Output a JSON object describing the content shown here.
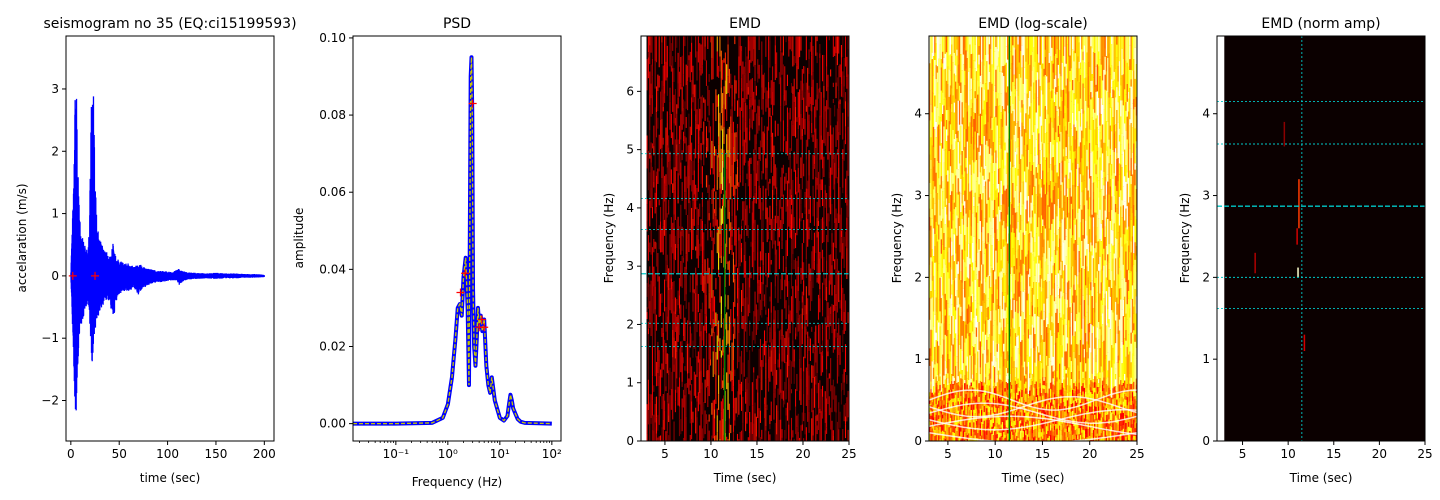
{
  "chart_data": [
    {
      "type": "line",
      "title": "seismogram no 35 (EQ:ci15199593)",
      "xlabel": "time (sec)",
      "ylabel": "accelaration (m/s)",
      "xlim": [
        -5,
        210
      ],
      "ylim": [
        -2.65,
        3.85
      ],
      "xticks": [
        0,
        50,
        100,
        150,
        200
      ],
      "xtick_labels": [
        "0",
        "50",
        "100",
        "150",
        "200"
      ],
      "yticks": [
        -2,
        -1,
        0,
        1,
        2,
        3
      ],
      "ytick_labels": [
        "−2",
        "−1",
        "0",
        "1",
        "2",
        "3"
      ],
      "series": [
        {
          "color": "#0000ff",
          "envelope": [
            [
              0,
              0,
              0
            ],
            [
              1,
              -0.5,
              0.6
            ],
            [
              2,
              -0.9,
              1.1
            ],
            [
              3,
              -1.4,
              1.6
            ],
            [
              4,
              -2.0,
              2.5
            ],
            [
              5,
              -2.35,
              3.4
            ],
            [
              6,
              -2.0,
              2.9
            ],
            [
              7,
              -1.6,
              2.0
            ],
            [
              8,
              -1.3,
              1.4
            ],
            [
              9,
              -1.0,
              1.0
            ],
            [
              10,
              -0.8,
              0.8
            ],
            [
              11,
              -0.8,
              0.75
            ],
            [
              12,
              -0.7,
              0.65
            ],
            [
              13,
              -0.7,
              0.6
            ],
            [
              14,
              -0.6,
              0.5
            ],
            [
              15,
              -0.55,
              0.5
            ],
            [
              16,
              -0.5,
              0.45
            ],
            [
              17,
              -0.45,
              0.4
            ],
            [
              18,
              -0.5,
              0.45
            ],
            [
              19,
              -0.7,
              0.8
            ],
            [
              20,
              -0.9,
              1.6
            ],
            [
              21,
              -1.2,
              2.6
            ],
            [
              22,
              -1.5,
              3.3
            ],
            [
              23,
              -1.2,
              3.65
            ],
            [
              24,
              -1.0,
              2.4
            ],
            [
              25,
              -0.9,
              1.6
            ],
            [
              26,
              -0.8,
              1.2
            ],
            [
              27,
              -0.7,
              1.0
            ],
            [
              28,
              -0.7,
              0.8
            ],
            [
              29,
              -0.6,
              0.7
            ],
            [
              30,
              -0.6,
              0.6
            ],
            [
              32,
              -0.5,
              0.5
            ],
            [
              34,
              -0.45,
              0.45
            ],
            [
              36,
              -0.4,
              0.4
            ],
            [
              38,
              -0.4,
              0.4
            ],
            [
              40,
              -0.45,
              0.35
            ],
            [
              42,
              -0.55,
              0.4
            ],
            [
              44,
              -0.7,
              0.55
            ],
            [
              46,
              -0.5,
              0.35
            ],
            [
              48,
              -0.35,
              0.3
            ],
            [
              50,
              -0.3,
              0.25
            ],
            [
              55,
              -0.25,
              0.2
            ],
            [
              60,
              -0.25,
              0.2
            ],
            [
              65,
              -0.2,
              0.15
            ],
            [
              70,
              -0.3,
              0.2
            ],
            [
              75,
              -0.2,
              0.15
            ],
            [
              80,
              -0.15,
              0.12
            ],
            [
              85,
              -0.12,
              0.1
            ],
            [
              90,
              -0.1,
              0.08
            ],
            [
              95,
              -0.1,
              0.08
            ],
            [
              100,
              -0.08,
              0.07
            ],
            [
              105,
              -0.07,
              0.06
            ],
            [
              110,
              -0.08,
              0.1
            ],
            [
              112,
              -0.15,
              0.12
            ],
            [
              115,
              -0.1,
              0.08
            ],
            [
              120,
              -0.06,
              0.06
            ],
            [
              130,
              -0.05,
              0.05
            ],
            [
              140,
              -0.04,
              0.04
            ],
            [
              150,
              -0.05,
              0.05
            ],
            [
              160,
              -0.04,
              0.04
            ],
            [
              170,
              -0.04,
              0.04
            ],
            [
              180,
              -0.03,
              0.03
            ],
            [
              190,
              -0.03,
              0.03
            ],
            [
              200,
              -0.02,
              0.02
            ]
          ]
        }
      ],
      "markers": {
        "color": "#ff0000",
        "points": [
          [
            2,
            0
          ],
          [
            25,
            0
          ]
        ]
      }
    },
    {
      "type": "line",
      "title": "PSD",
      "xlabel": "Frequency (Hz)",
      "ylabel": "amplitude",
      "xscale": "log",
      "xlim": [
        0.015,
        150
      ],
      "ylim": [
        -0.0045,
        0.1005
      ],
      "xticks": [
        0.1,
        1,
        10,
        100
      ],
      "xtick_labels": [
        "10⁻¹",
        "10⁰",
        "10¹",
        "10²"
      ],
      "yticks": [
        0.0,
        0.02,
        0.04,
        0.06,
        0.08,
        0.1
      ],
      "ytick_labels": [
        "0.00",
        "0.02",
        "0.04",
        "0.06",
        "0.08",
        "0.10"
      ],
      "series": [
        {
          "color": "#0000ff",
          "x": [
            0.015,
            0.1,
            0.5,
            0.8,
            1.0,
            1.2,
            1.4,
            1.55,
            1.7,
            1.85,
            2.0,
            2.2,
            2.4,
            2.55,
            2.65,
            2.75,
            2.85,
            2.95,
            3.05,
            3.2,
            3.4,
            3.6,
            3.8,
            4.0,
            4.3,
            4.6,
            5.0,
            5.5,
            6.0,
            6.5,
            7,
            8,
            10,
            12,
            14,
            15,
            16,
            17,
            18,
            20,
            22,
            25,
            30,
            100
          ],
          "y": [
            0.0,
            0.0,
            0.0002,
            0.0015,
            0.005,
            0.012,
            0.022,
            0.03,
            0.031,
            0.028,
            0.038,
            0.043,
            0.03,
            0.01,
            0.05,
            0.09,
            0.095,
            0.08,
            0.035,
            0.02,
            0.015,
            0.022,
            0.03,
            0.025,
            0.028,
            0.024,
            0.027,
            0.015,
            0.01,
            0.008,
            0.012,
            0.006,
            0.0015,
            0.0008,
            0.002,
            0.005,
            0.0075,
            0.006,
            0.004,
            0.0025,
            0.0012,
            0.0005,
            0.0002,
            0.0
          ]
        }
      ],
      "markers": {
        "color": "#ff0000",
        "points": [
          [
            1.75,
            0.034
          ],
          [
            2.15,
            0.039
          ],
          [
            3.0,
            0.083
          ],
          [
            4.0,
            0.025
          ],
          [
            4.5,
            0.027
          ],
          [
            5.0,
            0.025
          ]
        ]
      }
    },
    {
      "type": "heatmap",
      "title": "EMD",
      "xlabel": "Time (sec)",
      "ylabel": "Frequency (Hz)",
      "xlim": [
        2.4,
        25
      ],
      "ylim": [
        0,
        6.95
      ],
      "data_xlim": [
        3,
        25
      ],
      "xticks": [
        5,
        10,
        15,
        20,
        25
      ],
      "xtick_labels": [
        "5",
        "10",
        "15",
        "20",
        "25"
      ],
      "yticks": [
        0,
        1,
        2,
        3,
        4,
        5,
        6
      ],
      "ytick_labels": [
        "0",
        "1",
        "2",
        "3",
        "4",
        "5",
        "6"
      ],
      "colormap": "hot",
      "dense": false,
      "hlines_dotted": [
        4.93,
        4.16,
        3.63,
        2.02,
        1.62
      ],
      "hline_dashed": 2.87,
      "vline": 11.5,
      "vline_color": "#008000",
      "line_color": "#00c8c8"
    },
    {
      "type": "heatmap",
      "title": "EMD (log-scale)",
      "xlabel": "Time (sec)",
      "ylabel": "Frequency (Hz)",
      "xlim": [
        3,
        25
      ],
      "ylim": [
        0,
        4.95
      ],
      "data_xlim": [
        3,
        25
      ],
      "xticks": [
        5,
        10,
        15,
        20,
        25
      ],
      "xtick_labels": [
        "5",
        "10",
        "15",
        "20",
        "25"
      ],
      "yticks": [
        0,
        1,
        2,
        3,
        4
      ],
      "ytick_labels": [
        "0",
        "1",
        "2",
        "3",
        "4"
      ],
      "colormap": "hot",
      "dense": true,
      "hlines_dotted": [],
      "hline_dashed": null,
      "vline": 11.5,
      "vline_color": "#008000",
      "line_color": "#00c8c8"
    },
    {
      "type": "heatmap",
      "title": "EMD (norm amp)",
      "xlabel": "Time (sec)",
      "ylabel": "Frequency (Hz)",
      "xlim": [
        2.2,
        25
      ],
      "ylim": [
        0,
        4.95
      ],
      "data_xlim": [
        3,
        25
      ],
      "xticks": [
        5,
        10,
        15,
        20,
        25
      ],
      "xtick_labels": [
        "5",
        "10",
        "15",
        "20",
        "25"
      ],
      "yticks": [
        0,
        1,
        2,
        3,
        4
      ],
      "ytick_labels": [
        "0",
        "1",
        "2",
        "3",
        "4"
      ],
      "colormap": "hot",
      "dense": false,
      "sparse": true,
      "hlines_dotted": [
        4.15,
        3.63,
        2.0,
        1.62
      ],
      "hline_dashed": 2.87,
      "vline": 11.5,
      "vline_color": "#00c8c8",
      "line_color": "#00c8c8"
    }
  ]
}
